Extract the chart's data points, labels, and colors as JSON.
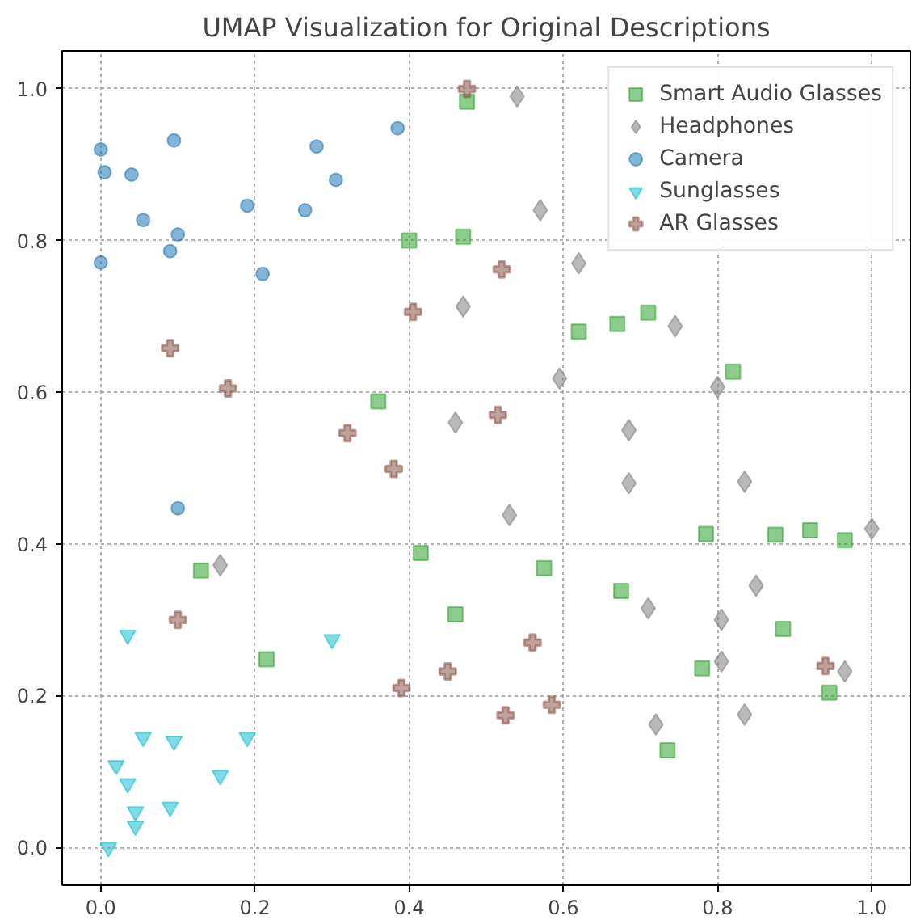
{
  "chart_data": {
    "type": "scatter",
    "title": "UMAP Visualization for Original Descriptions",
    "xlim": [
      -0.05,
      1.05
    ],
    "ylim": [
      -0.05,
      1.05
    ],
    "xticks": [
      {
        "value": 0,
        "label": "0.0"
      },
      {
        "value": 0.2,
        "label": "0.2"
      },
      {
        "value": 0.4,
        "label": "0.4"
      },
      {
        "value": 0.6,
        "label": "0.6"
      },
      {
        "value": 0.8,
        "label": "0.8"
      },
      {
        "value": 1,
        "label": "1.0"
      }
    ],
    "yticks": [
      {
        "value": 0,
        "label": "0.0"
      },
      {
        "value": 0.2,
        "label": "0.2"
      },
      {
        "value": 0.4,
        "label": "0.4"
      },
      {
        "value": 0.6,
        "label": "0.6"
      },
      {
        "value": 0.8,
        "label": "0.8"
      },
      {
        "value": 1,
        "label": "1.0"
      }
    ],
    "grid": true,
    "legend": "top right",
    "series": [
      {
        "name": "Smart Audio Glasses",
        "color": "#2ca02c",
        "marker": "square",
        "x": [
          0.475,
          0.4,
          0.47,
          0.62,
          0.67,
          0.71,
          0.82,
          0.36,
          0.13,
          0.415,
          0.575,
          0.46,
          0.215,
          0.675,
          0.785,
          0.875,
          0.92,
          0.965,
          0.885,
          0.78,
          0.735,
          0.945
        ],
        "values": [
          0.983,
          0.8,
          0.805,
          0.68,
          0.69,
          0.705,
          0.627,
          0.588,
          0.365,
          0.388,
          0.368,
          0.307,
          0.248,
          0.338,
          0.413,
          0.412,
          0.418,
          0.405,
          0.288,
          0.236,
          0.128,
          0.204
        ]
      },
      {
        "name": "Headphones",
        "color": "#7f7f7f",
        "marker": "diamond",
        "x": [
          0.54,
          0.57,
          0.47,
          0.62,
          0.745,
          0.595,
          0.8,
          0.46,
          0.685,
          0.685,
          0.835,
          0.53,
          0.155,
          1.0,
          0.85,
          0.71,
          0.805,
          0.805,
          0.965,
          0.72,
          0.835
        ],
        "values": [
          0.99,
          0.84,
          0.713,
          0.77,
          0.687,
          0.618,
          0.607,
          0.56,
          0.55,
          0.48,
          0.482,
          0.438,
          0.372,
          0.42,
          0.345,
          0.315,
          0.3,
          0.245,
          0.232,
          0.162,
          0.175
        ]
      },
      {
        "name": "Camera",
        "color": "#1f77b4",
        "marker": "circle",
        "x": [
          0.0,
          0.005,
          0.04,
          0.095,
          0.055,
          0.1,
          0.09,
          0.0,
          0.19,
          0.21,
          0.28,
          0.265,
          0.305,
          0.385,
          0.1
        ],
        "values": [
          0.92,
          0.89,
          0.887,
          0.932,
          0.827,
          0.808,
          0.786,
          0.771,
          0.846,
          0.756,
          0.924,
          0.84,
          0.88,
          0.948,
          0.447
        ]
      },
      {
        "name": "Sunglasses",
        "color": "#17becf",
        "marker": "triangle",
        "x": [
          0.035,
          0.3,
          0.055,
          0.095,
          0.19,
          0.02,
          0.035,
          0.155,
          0.045,
          0.09,
          0.045,
          0.01
        ],
        "values": [
          0.28,
          0.274,
          0.145,
          0.14,
          0.145,
          0.108,
          0.084,
          0.095,
          0.047,
          0.053,
          0.028,
          0.0
        ]
      },
      {
        "name": "AR Glasses",
        "color": "#8c564b",
        "marker": "cross",
        "x": [
          0.475,
          0.09,
          0.165,
          0.405,
          0.52,
          0.32,
          0.38,
          0.515,
          0.1,
          0.39,
          0.45,
          0.56,
          0.525,
          0.585,
          0.94
        ],
        "values": [
          1.0,
          0.658,
          0.605,
          0.706,
          0.762,
          0.546,
          0.499,
          0.57,
          0.3,
          0.21,
          0.232,
          0.27,
          0.174,
          0.188,
          0.239
        ]
      }
    ]
  }
}
